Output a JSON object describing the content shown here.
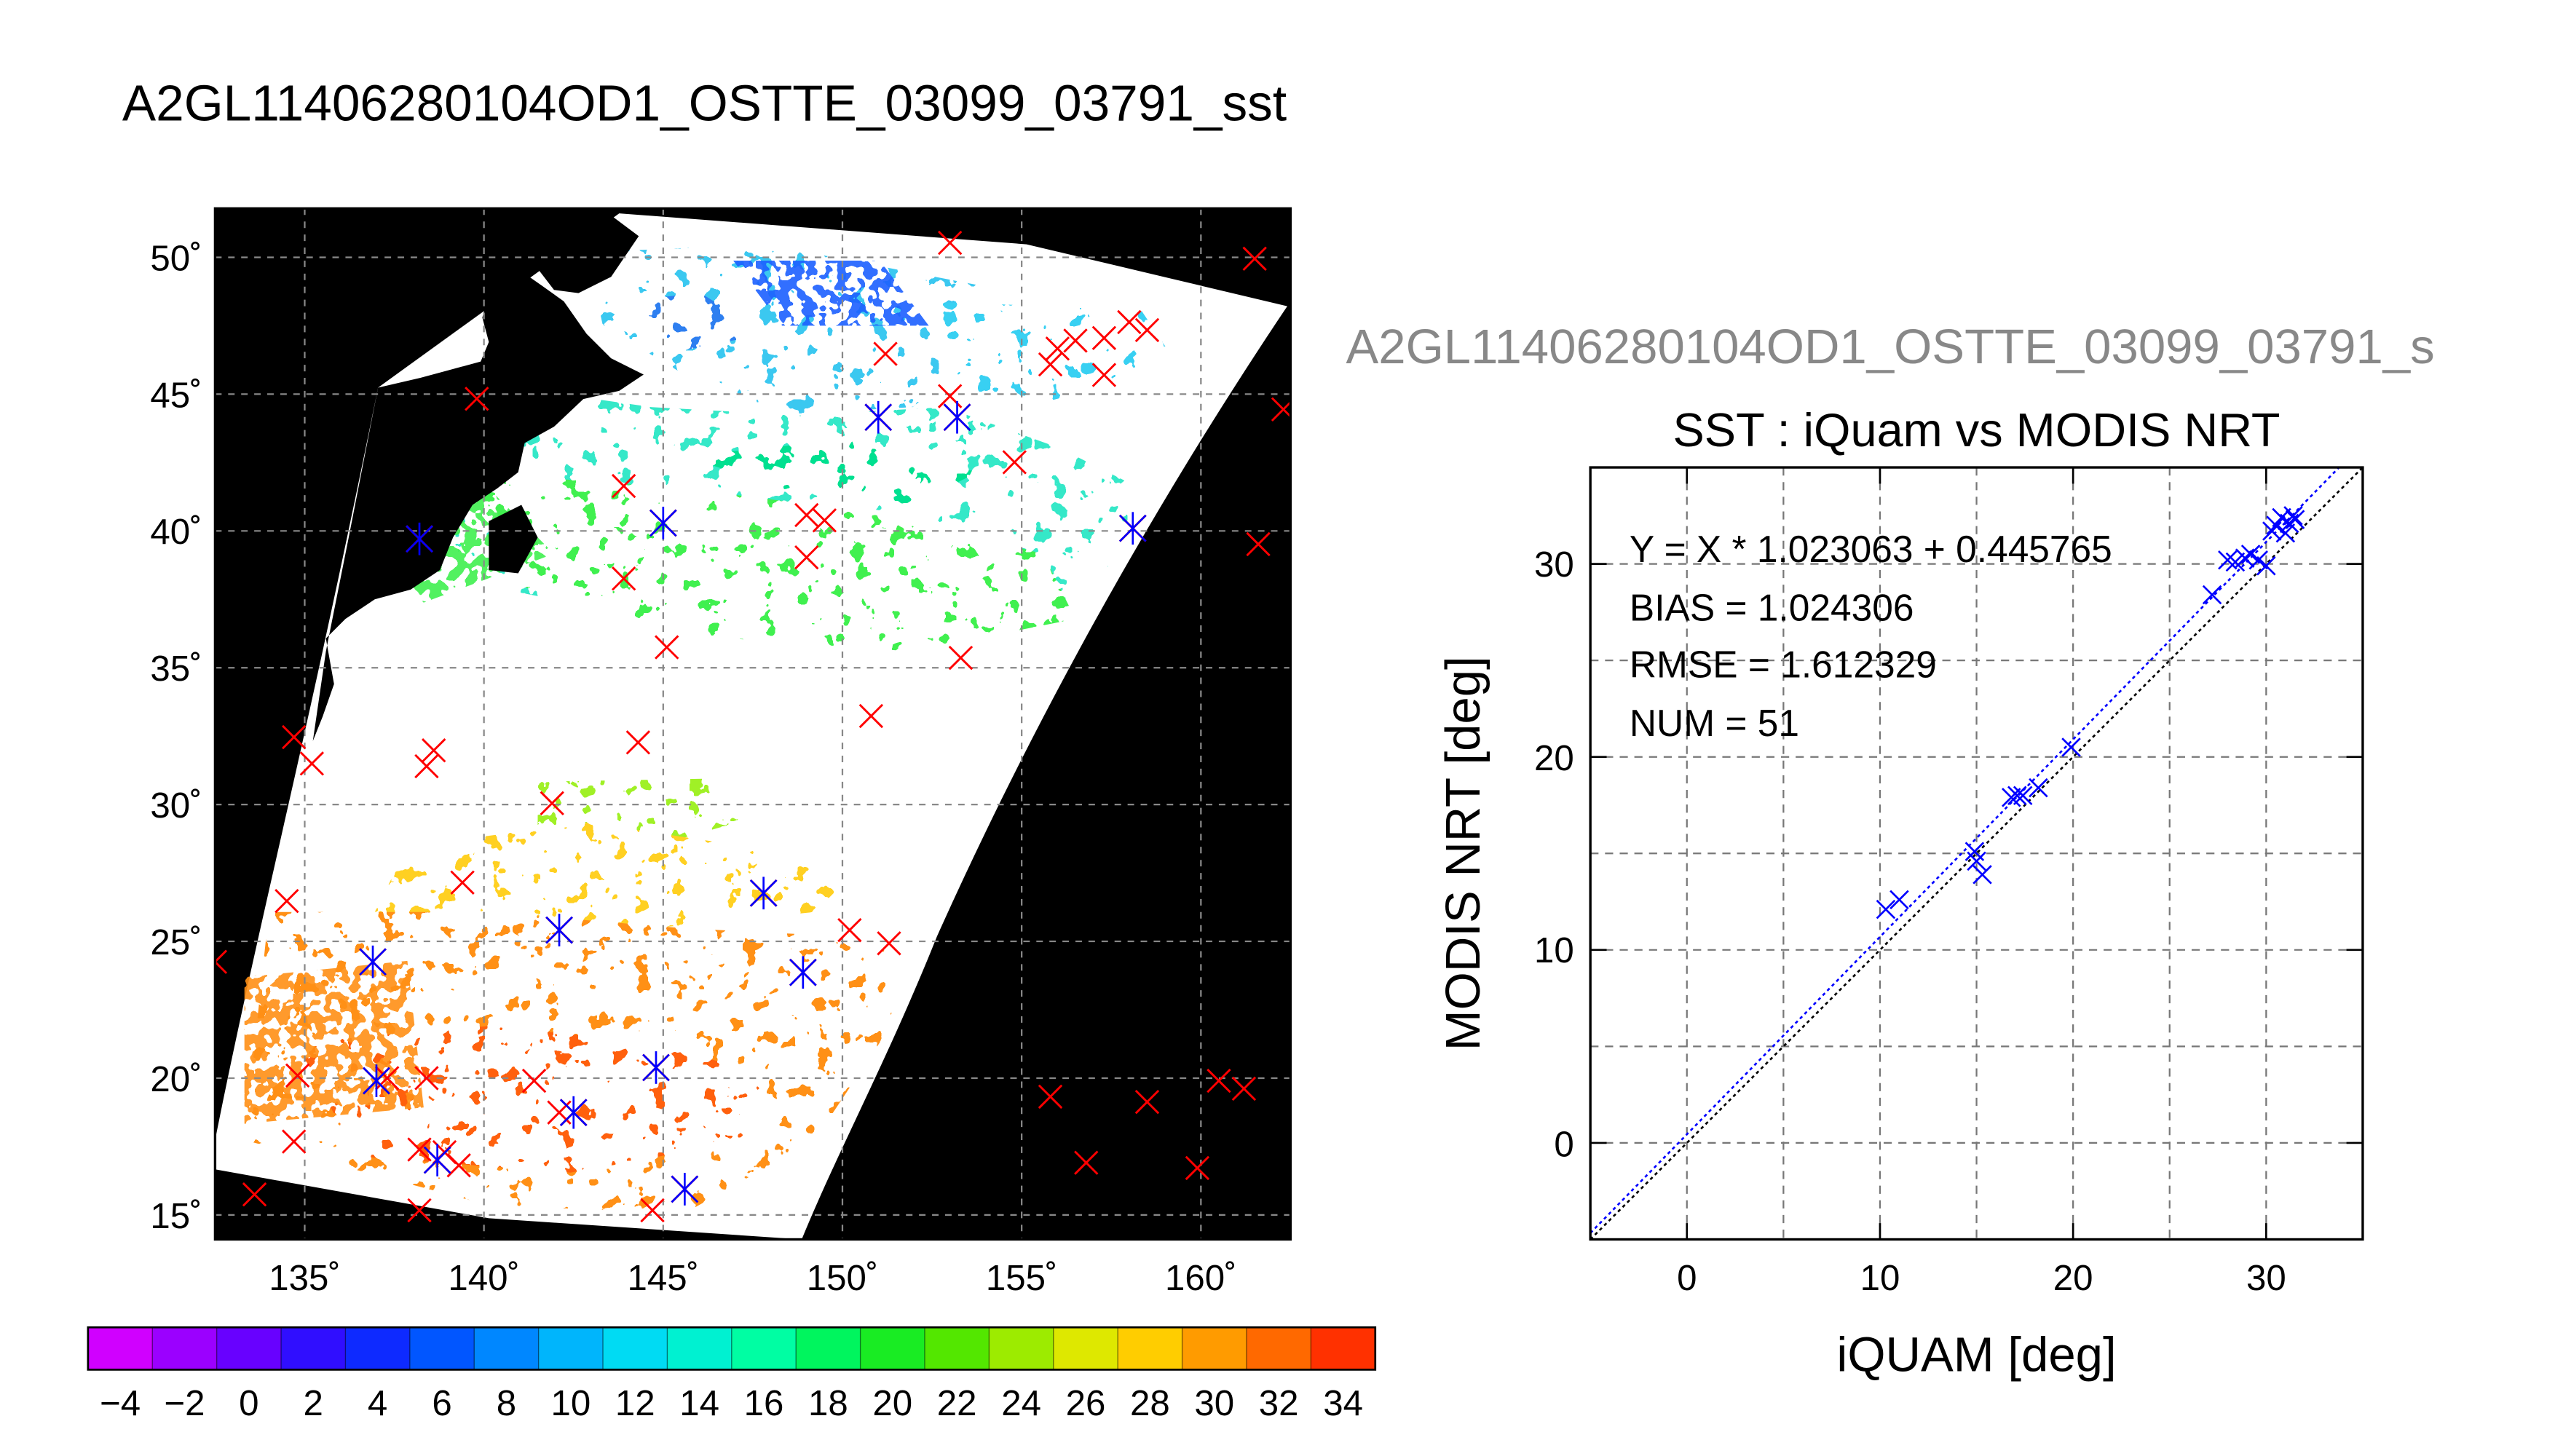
{
  "map": {
    "title": "A2GL11406280104OD1_OSTTE_03099_03791_sst",
    "lat_labels": [
      "50˚",
      "45˚",
      "40˚",
      "35˚",
      "30˚",
      "25˚",
      "20˚",
      "15˚"
    ],
    "lon_labels": [
      "135˚",
      "140˚",
      "145˚",
      "150˚",
      "155˚",
      "160˚"
    ],
    "colorbar_labels": [
      "−4",
      "−2",
      "0",
      "2",
      "4",
      "6",
      "8",
      "10",
      "12",
      "14",
      "16",
      "18",
      "20",
      "22",
      "24",
      "26",
      "28",
      "30",
      "32",
      "34"
    ],
    "colorbar_range": [
      -5,
      35
    ],
    "lat_range": [
      13.5,
      52.5
    ],
    "lon_range": [
      132.5,
      162.5
    ]
  },
  "chart_data": [
    {
      "type": "map",
      "title": "A2GL11406280104OD1_OSTTE_03099_03791_sst",
      "xlabel": "",
      "ylabel": "",
      "x_ticks": [
        135,
        140,
        145,
        150,
        155,
        160
      ],
      "y_ticks": [
        15,
        20,
        25,
        30,
        35,
        40,
        45,
        50
      ],
      "colorbar": {
        "min": -5,
        "max": 35,
        "ticks": [
          -4,
          -2,
          0,
          2,
          4,
          6,
          8,
          10,
          12,
          14,
          16,
          18,
          20,
          22,
          24,
          26,
          28,
          30,
          32,
          34
        ]
      },
      "red_markers": [
        {
          "lon": 153.0,
          "lat": 51.2
        },
        {
          "lon": 161.5,
          "lat": 50.6
        },
        {
          "lon": 156.5,
          "lat": 47.5
        },
        {
          "lon": 157.3,
          "lat": 47.6
        },
        {
          "lon": 158.0,
          "lat": 48.2
        },
        {
          "lon": 158.5,
          "lat": 47.9
        },
        {
          "lon": 155.8,
          "lat": 46.6
        },
        {
          "lon": 156.0,
          "lat": 47.2
        },
        {
          "lon": 151.2,
          "lat": 47.0
        },
        {
          "lon": 153.0,
          "lat": 45.4
        },
        {
          "lon": 157.3,
          "lat": 46.2
        },
        {
          "lon": 162.3,
          "lat": 44.9
        },
        {
          "lon": 154.8,
          "lat": 42.9
        },
        {
          "lon": 139.8,
          "lat": 45.3
        },
        {
          "lon": 143.9,
          "lat": 42.0
        },
        {
          "lon": 149.0,
          "lat": 40.9
        },
        {
          "lon": 149.5,
          "lat": 40.7
        },
        {
          "lon": 149.0,
          "lat": 39.3
        },
        {
          "lon": 143.9,
          "lat": 38.5
        },
        {
          "lon": 145.1,
          "lat": 35.9
        },
        {
          "lon": 153.3,
          "lat": 35.5
        },
        {
          "lon": 161.6,
          "lat": 39.8
        },
        {
          "lon": 150.8,
          "lat": 33.3
        },
        {
          "lon": 134.7,
          "lat": 32.5
        },
        {
          "lon": 135.2,
          "lat": 31.5
        },
        {
          "lon": 138.6,
          "lat": 32.0
        },
        {
          "lon": 138.4,
          "lat": 31.4
        },
        {
          "lon": 144.3,
          "lat": 32.3
        },
        {
          "lon": 141.9,
          "lat": 30.0
        },
        {
          "lon": 139.4,
          "lat": 27.0
        },
        {
          "lon": 134.5,
          "lat": 26.3
        },
        {
          "lon": 150.2,
          "lat": 25.2
        },
        {
          "lon": 151.3,
          "lat": 24.7
        },
        {
          "lon": 132.5,
          "lat": 24.0
        },
        {
          "lon": 134.8,
          "lat": 19.7
        },
        {
          "lon": 137.3,
          "lat": 19.6
        },
        {
          "lon": 138.4,
          "lat": 19.6
        },
        {
          "lon": 141.4,
          "lat": 19.5
        },
        {
          "lon": 142.1,
          "lat": 18.3
        },
        {
          "lon": 134.7,
          "lat": 17.2
        },
        {
          "lon": 138.2,
          "lat": 16.9
        },
        {
          "lon": 138.9,
          "lat": 16.8
        },
        {
          "lon": 139.3,
          "lat": 16.3
        },
        {
          "lon": 133.6,
          "lat": 15.2
        },
        {
          "lon": 138.2,
          "lat": 14.6
        },
        {
          "lon": 144.7,
          "lat": 14.6
        },
        {
          "lon": 155.8,
          "lat": 18.9
        },
        {
          "lon": 158.5,
          "lat": 18.7
        },
        {
          "lon": 160.5,
          "lat": 19.5
        },
        {
          "lon": 161.2,
          "lat": 19.2
        },
        {
          "lon": 156.8,
          "lat": 16.4
        },
        {
          "lon": 159.9,
          "lat": 16.2
        }
      ],
      "blue_markers": [
        {
          "lon": 151.0,
          "lat": 44.6
        },
        {
          "lon": 153.2,
          "lat": 44.6
        },
        {
          "lon": 145.0,
          "lat": 40.6
        },
        {
          "lon": 138.2,
          "lat": 40.0
        },
        {
          "lon": 158.1,
          "lat": 40.4
        },
        {
          "lon": 142.1,
          "lat": 25.2
        },
        {
          "lon": 147.8,
          "lat": 26.6
        },
        {
          "lon": 136.9,
          "lat": 24.0
        },
        {
          "lon": 148.9,
          "lat": 23.6
        },
        {
          "lon": 137.0,
          "lat": 19.5
        },
        {
          "lon": 144.8,
          "lat": 20.0
        },
        {
          "lon": 142.5,
          "lat": 18.3
        },
        {
          "lon": 138.7,
          "lat": 16.5
        },
        {
          "lon": 145.6,
          "lat": 15.4
        }
      ]
    },
    {
      "type": "scatter",
      "file_label": "A2GL11406280104OD1_OSTTE_03099_03791_s",
      "title": "SST : iQuam vs MODIS NRT",
      "xlabel": "iQUAM [deg]",
      "ylabel": "MODIS NRT [deg]",
      "xlim": [
        -5,
        35
      ],
      "ylim": [
        -5,
        35
      ],
      "x_ticks": [
        0,
        10,
        20,
        30
      ],
      "y_ticks": [
        0,
        10,
        20,
        30
      ],
      "x_tick_labels": [
        "0",
        "10",
        "20",
        "30"
      ],
      "y_tick_labels": [
        "0",
        "10",
        "20",
        "30"
      ],
      "grid": true,
      "stats": [
        "Y = X * 1.023063 + 0.445765",
        "BIAS = 1.024306",
        "RMSE = 1.612329",
        "NUM = 51"
      ],
      "fit": {
        "slope": 1.023063,
        "intercept": 0.445765
      },
      "points": [
        [
          10.3,
          12.1
        ],
        [
          11.0,
          12.6
        ],
        [
          14.9,
          15.1
        ],
        [
          15.0,
          14.6
        ],
        [
          15.3,
          13.9
        ],
        [
          16.8,
          17.9
        ],
        [
          17.1,
          18.0
        ],
        [
          17.4,
          18.0
        ],
        [
          18.2,
          18.4
        ],
        [
          19.9,
          20.5
        ],
        [
          27.2,
          28.4
        ],
        [
          28.0,
          30.2
        ],
        [
          28.4,
          30.1
        ],
        [
          28.9,
          30.3
        ],
        [
          29.2,
          30.5
        ],
        [
          29.6,
          30.2
        ],
        [
          30.0,
          29.9
        ],
        [
          30.3,
          31.7
        ],
        [
          30.5,
          32.0
        ],
        [
          30.8,
          32.4
        ],
        [
          31.0,
          31.6
        ],
        [
          31.2,
          32.1
        ],
        [
          31.4,
          32.5
        ],
        [
          31.5,
          32.3
        ]
      ]
    }
  ],
  "colors": {
    "red_marker": "#ff0000",
    "blue_marker": "#0000ff",
    "map_background": "#000000"
  }
}
